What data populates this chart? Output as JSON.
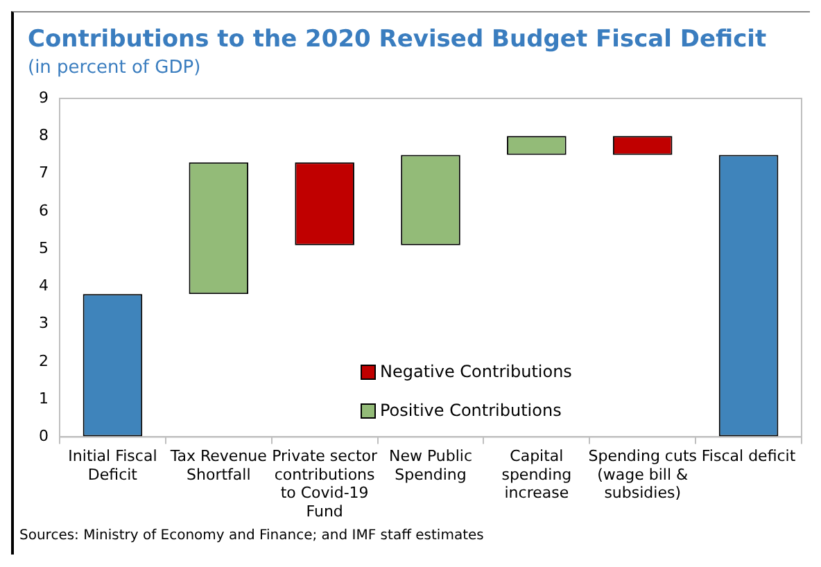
{
  "chart_data": {
    "type": "bar",
    "title": "Contributions to the 2020 Revised Budget Fiscal Deficit",
    "subtitle": "(in percent of GDP)",
    "categories": [
      "Initial Fiscal Deficit",
      "Tax Revenue Shortfall",
      "Private sector contributions to Covid-19 Fund",
      "New Public Spending",
      "Capital spending increase",
      "Spending cuts (wage bill & subsidies)",
      "Fiscal deficit"
    ],
    "series": [
      {
        "color": "#3f84bb",
        "values": [
          3.8,
          null,
          null,
          null,
          null,
          null,
          7.5
        ],
        "base": [
          0,
          null,
          null,
          null,
          null,
          null,
          0
        ]
      },
      {
        "name": "Negative Contributions",
        "color": "#c00000",
        "values": [
          null,
          null,
          -2.2,
          null,
          null,
          -0.5,
          null
        ],
        "base": [
          null,
          null,
          7.3,
          null,
          null,
          8.0,
          null
        ]
      },
      {
        "name": "Positive Contributions",
        "color": "#93bb78",
        "values": [
          null,
          3.5,
          null,
          2.4,
          0.5,
          null,
          null
        ],
        "base": [
          null,
          3.8,
          null,
          5.1,
          7.5,
          null,
          null
        ]
      }
    ],
    "ylim": [
      0,
      9
    ],
    "yticks": [
      0,
      1,
      2,
      3,
      4,
      5,
      6,
      7,
      8,
      9
    ],
    "grid": false,
    "legend": "bottom",
    "annotations": [
      "Sources: Ministry of Economy and Finance; and IMF staff estimates"
    ]
  }
}
